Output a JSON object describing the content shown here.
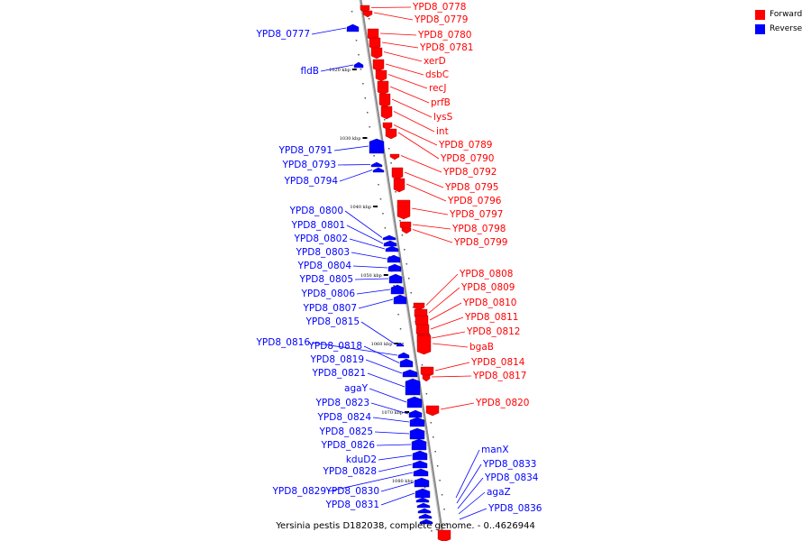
{
  "legend": {
    "forward_label": "Forward",
    "reverse_label": "Reverse",
    "forward_color": "#ff0000",
    "reverse_color": "#0000ff"
  },
  "caption": "Yersinia pestis D182038, complete genome. - 0..4626944",
  "ticks": [
    "1020 kbp",
    "1030 kbp",
    "1040 kbp",
    "1050 kbp",
    "1060 kbp",
    "1070 kbp",
    "1080 kbp"
  ],
  "forward_genes": [
    "YPD8_0778",
    "YPD8_0779",
    "YPD8_0780",
    "YPD8_0781",
    "xerD",
    "dsbC",
    "recJ",
    "prfB",
    "lysS",
    "int",
    "YPD8_0789",
    "YPD8_0790",
    "YPD8_0792",
    "YPD8_0795",
    "YPD8_0796",
    "YPD8_0797",
    "YPD8_0798",
    "YPD8_0799",
    "YPD8_0808",
    "YPD8_0809",
    "YPD8_0810",
    "YPD8_0811",
    "YPD8_0812",
    "bgaB",
    "YPD8_0814",
    "YPD8_0817",
    "YPD8_0820"
  ],
  "reverse_genes": [
    "YPD8_0777",
    "fldB",
    "YPD8_0791",
    "YPD8_0793",
    "YPD8_0794",
    "YPD8_0800",
    "YPD8_0801",
    "YPD8_0802",
    "YPD8_0803",
    "YPD8_0804",
    "YPD8_0805",
    "YPD8_0806",
    "YPD8_0807",
    "YPD8_0815",
    "YPD8_0816",
    "YPD8_0818",
    "YPD8_0819",
    "YPD8_0821",
    "agaY",
    "YPD8_0823",
    "YPD8_0824",
    "YPD8_0825",
    "YPD8_0826",
    "kduD2",
    "YPD8_0828",
    "YPD8_0829",
    "YPD8_0830",
    "YPD8_0831"
  ],
  "reverse_genes_right": [
    "manX",
    "YPD8_0833",
    "YPD8_0834",
    "agaZ",
    "YPD8_0836"
  ]
}
